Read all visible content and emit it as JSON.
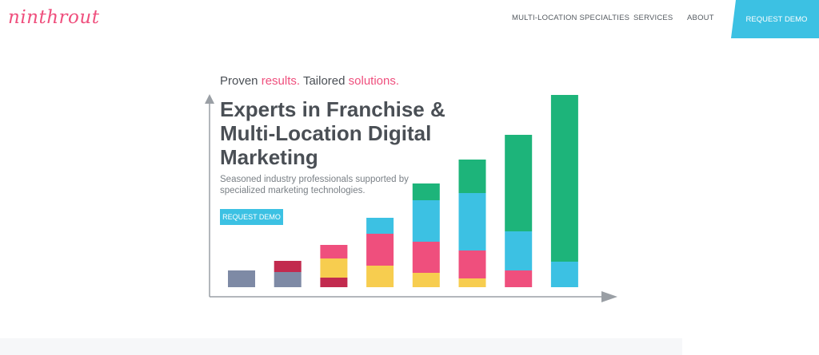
{
  "header": {
    "logo": "ninthrout",
    "nav": [
      {
        "label": "MULTI-LOCATION SPECIALTIES"
      },
      {
        "label": "SERVICES"
      },
      {
        "label": "ABOUT"
      }
    ],
    "cta": "REQUEST DEMO"
  },
  "hero": {
    "tagline": {
      "w1": "Proven ",
      "p1": "results.",
      "w2": " Tailored ",
      "p2": "solutions."
    },
    "headline": "Experts in Franchise & Multi-Location Digital Marketing",
    "subtext": "Seasoned industry professionals supported by specialized marketing technologies.",
    "cta": "REQUEST DEMO"
  },
  "colors": {
    "accent_blue": "#3cc1e3",
    "pink": "#ef4f7d",
    "green": "#1db47a",
    "yellow": "#f7cd4f",
    "slate": "#7e8aa5",
    "crimson": "#c22a4e",
    "text_dark": "#4a4f55"
  },
  "chart_data": {
    "type": "bar",
    "stacked": true,
    "title": "",
    "xlabel": "",
    "ylabel": "",
    "axis": {
      "x_arrow": true,
      "y_arrow": true,
      "ticks": false
    },
    "bars": [
      [
        {
          "color": "slate",
          "value": 21
        }
      ],
      [
        {
          "color": "slate",
          "value": 19
        },
        {
          "color": "crimson",
          "value": 14
        }
      ],
      [
        {
          "color": "crimson",
          "value": 12
        },
        {
          "color": "yellow",
          "value": 24
        },
        {
          "color": "pink",
          "value": 17
        }
      ],
      [
        {
          "color": "yellow",
          "value": 27
        },
        {
          "color": "pink",
          "value": 40
        },
        {
          "color": "blue",
          "value": 20
        }
      ],
      [
        {
          "color": "yellow",
          "value": 18
        },
        {
          "color": "pink",
          "value": 39
        },
        {
          "color": "blue",
          "value": 52
        },
        {
          "color": "green",
          "value": 21
        }
      ],
      [
        {
          "color": "yellow",
          "value": 11
        },
        {
          "color": "pink",
          "value": 35
        },
        {
          "color": "blue",
          "value": 72
        },
        {
          "color": "green",
          "value": 42
        }
      ],
      [
        {
          "color": "pink",
          "value": 21
        },
        {
          "color": "blue",
          "value": 49
        },
        {
          "color": "green",
          "value": 121
        }
      ],
      [
        {
          "color": "blue",
          "value": 32
        },
        {
          "color": "green",
          "value": 209
        }
      ]
    ]
  }
}
